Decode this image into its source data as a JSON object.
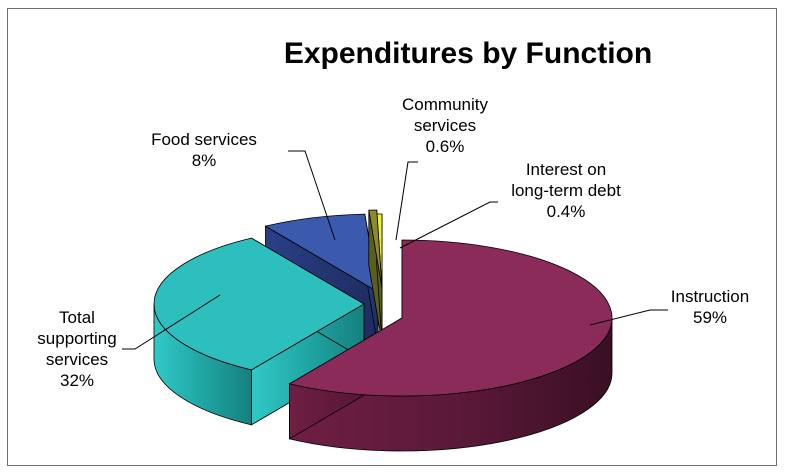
{
  "chart_data": {
    "type": "pie",
    "title": "Expenditures by Function",
    "categories": [
      "Instruction",
      "Total supporting services",
      "Food services",
      "Community services",
      "Interest on long-term debt"
    ],
    "values": [
      59,
      32,
      8,
      0.6,
      0.4
    ],
    "value_labels": [
      "59%",
      "32%",
      "8%",
      "0.6%",
      "0.4%"
    ],
    "label_lines": [
      [
        "Instruction",
        "59%"
      ],
      [
        "Total",
        "supporting",
        "services",
        "32%"
      ],
      [
        "Food services",
        "8%"
      ],
      [
        "Community",
        "services",
        "0.6%"
      ],
      [
        "Interest on",
        "long-term debt",
        "0.4%"
      ]
    ],
    "colors": [
      "#8b2b5a",
      "#2cbfbd",
      "#3b59ad",
      "#8b8b2b",
      "#f2ee3a"
    ],
    "style": "3d-exploded",
    "legend": "none"
  }
}
